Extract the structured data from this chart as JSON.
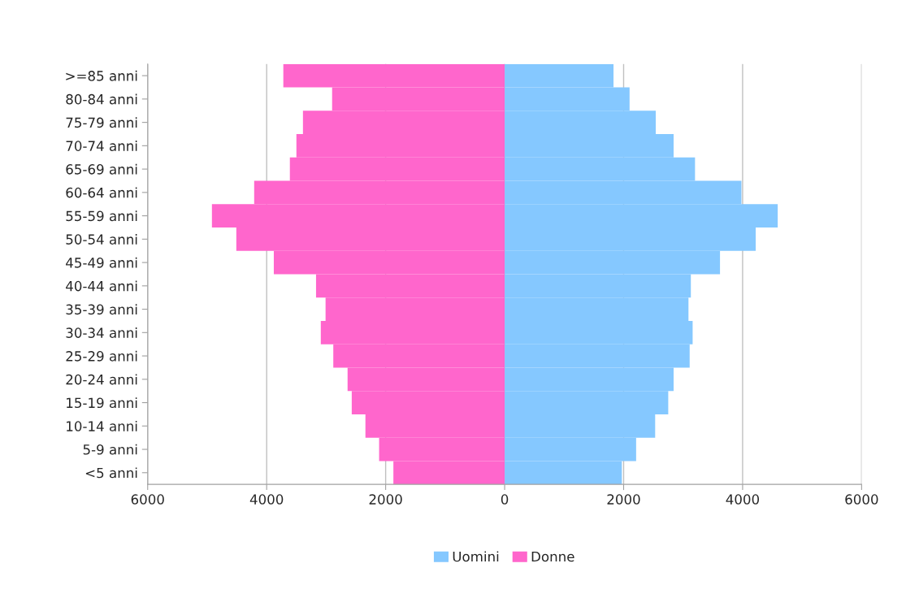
{
  "chart_data": {
    "type": "bar",
    "orientation": "horizontal",
    "categories": [
      ">=85 anni",
      "80-84 anni",
      "75-79 anni",
      "70-74 anni",
      "65-69 anni",
      "60-64 anni",
      "55-59 anni",
      "50-54 anni",
      "45-49 anni",
      "40-44 anni",
      "35-39 anni",
      "30-34 anni",
      "25-29 anni",
      "20-24 anni",
      "15-19 anni",
      "10-14 anni",
      "5-9 anni",
      "<5 anni"
    ],
    "series": [
      {
        "name": "Uomini",
        "color": "#85c8ff",
        "values": [
          1830,
          2100,
          2540,
          2840,
          3200,
          3980,
          4590,
          4220,
          3620,
          3130,
          3090,
          3160,
          3110,
          2840,
          2750,
          2530,
          2210,
          1970
        ]
      },
      {
        "name": "Donne",
        "color": "#ff66cc",
        "values": [
          -3720,
          -2900,
          -3390,
          -3500,
          -3610,
          -4210,
          -4920,
          -4510,
          -3880,
          -3170,
          -3010,
          -3090,
          -2880,
          -2640,
          -2570,
          -2340,
          -2110,
          -1870
        ]
      }
    ],
    "xlim": [
      -6000,
      6000
    ],
    "xticks": [
      {
        "value": -6000,
        "label": "6000"
      },
      {
        "value": -4000,
        "label": "4000"
      },
      {
        "value": -2000,
        "label": "2000"
      },
      0,
      2000,
      4000,
      6000
    ],
    "stacked": true,
    "grid": "x",
    "legend": "bottom"
  }
}
